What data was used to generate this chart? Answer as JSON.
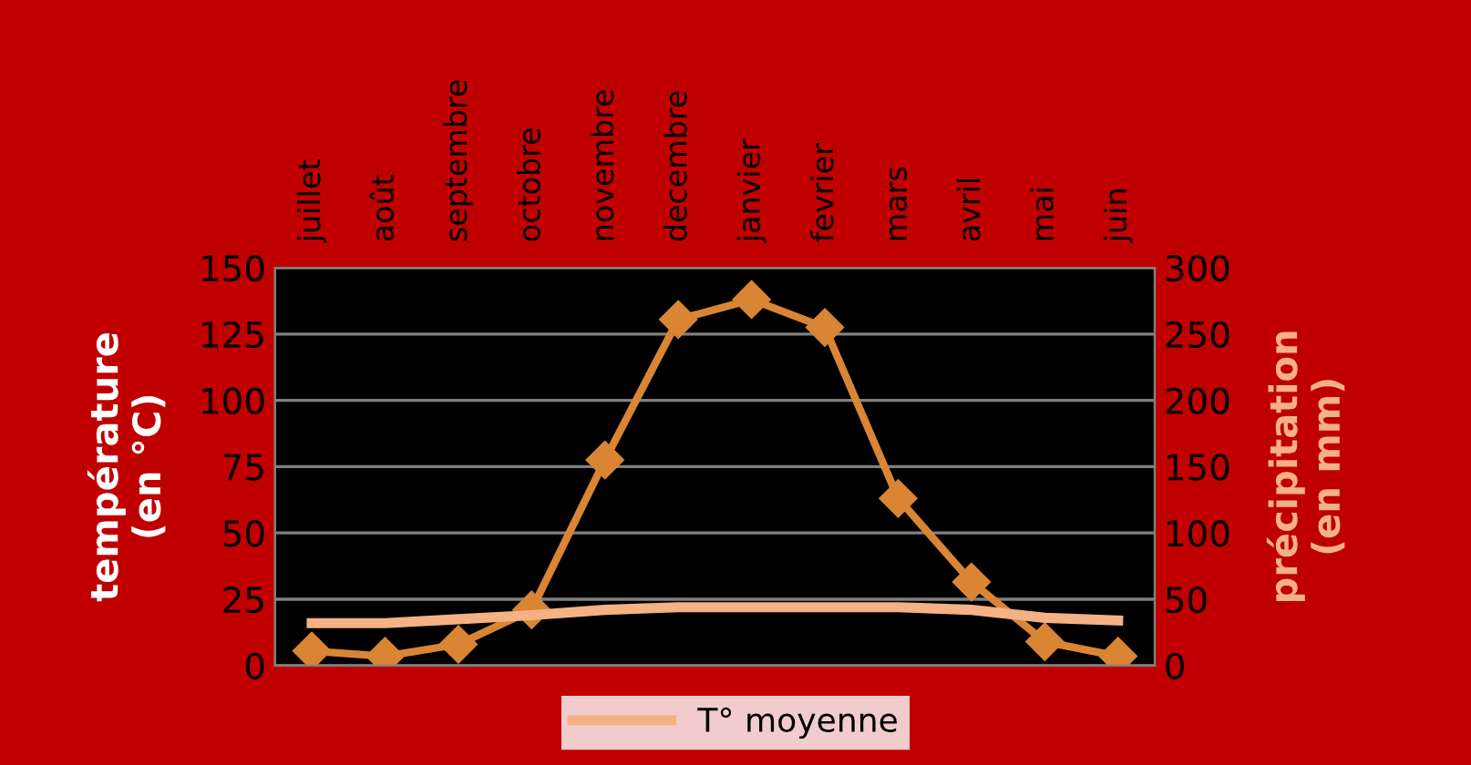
{
  "chart_data": {
    "type": "line",
    "ylabel": "température\n(en °C)",
    "y2label": "précipitation\n(en mm)",
    "categories": [
      "juillet",
      "août",
      "septembre",
      "octobre",
      "novembre",
      "decembre",
      "janvier",
      "fevrier",
      "mars",
      "avril",
      "mai",
      "juin"
    ],
    "series": [
      {
        "name": "T° moyenne",
        "color": "#f4b183",
        "marker": "none",
        "values": [
          16,
          16,
          17.5,
          19,
          21,
          22,
          22,
          22,
          22,
          21,
          18,
          17
        ]
      },
      {
        "type": "line",
        "axis": "y2",
        "color": "#d98533",
        "marker": "diamond",
        "values": [
          11,
          7,
          16,
          42,
          155,
          261,
          276,
          255,
          126,
          63,
          18,
          7
        ]
      }
    ],
    "ylim": [
      0,
      150
    ],
    "yticks": [
      0,
      25,
      50,
      75,
      100,
      125,
      150
    ],
    "y2lim": [
      0,
      300
    ],
    "y2ticks": [
      0,
      50,
      100,
      150,
      200,
      250,
      300
    ],
    "grid": "y",
    "legend": "bottom"
  }
}
